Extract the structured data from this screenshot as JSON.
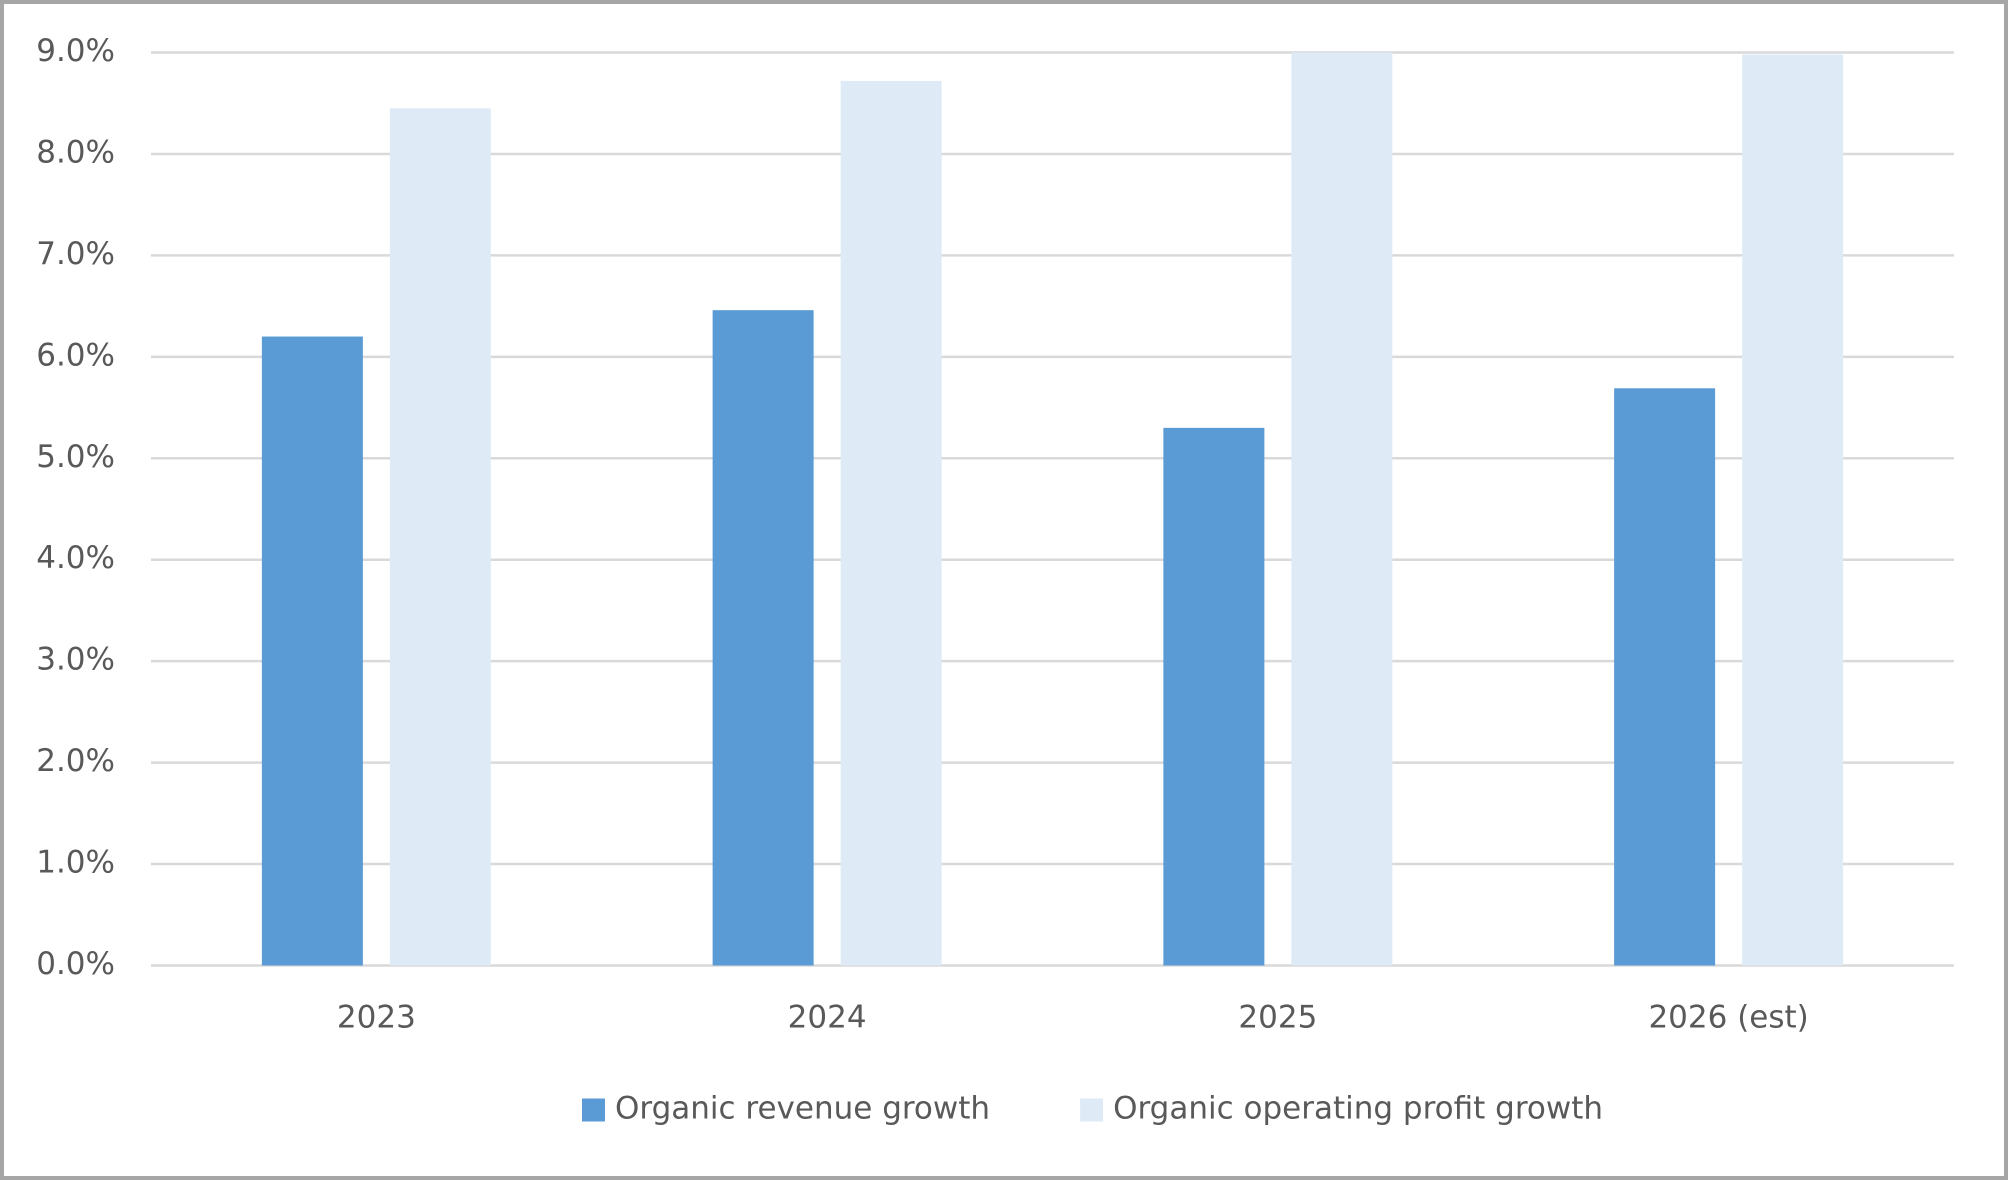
{
  "chart_data": {
    "type": "bar",
    "categories": [
      "2023",
      "2024",
      "2025",
      "2026 (est)"
    ],
    "series": [
      {
        "name": "Organic revenue growth",
        "color": "#5b9bd5",
        "values": [
          6.2,
          6.46,
          5.3,
          5.69
        ]
      },
      {
        "name": "Organic operating profit growth",
        "color": "#deebf7",
        "values": [
          8.45,
          8.72,
          9.0,
          8.98
        ]
      }
    ],
    "ylim": [
      0,
      9
    ],
    "yticks": [
      {
        "value": 0,
        "label": "0.0%"
      },
      {
        "value": 1,
        "label": "1.0%"
      },
      {
        "value": 2,
        "label": "2.0%"
      },
      {
        "value": 3,
        "label": "3.0%"
      },
      {
        "value": 4,
        "label": "4.0%"
      },
      {
        "value": 5,
        "label": "5.0%"
      },
      {
        "value": 6,
        "label": "6.0%"
      },
      {
        "value": 7,
        "label": "7.0%"
      },
      {
        "value": 8,
        "label": "8.0%"
      },
      {
        "value": 9,
        "label": "9.0%"
      }
    ],
    "grid": true,
    "legend": "bottom"
  }
}
